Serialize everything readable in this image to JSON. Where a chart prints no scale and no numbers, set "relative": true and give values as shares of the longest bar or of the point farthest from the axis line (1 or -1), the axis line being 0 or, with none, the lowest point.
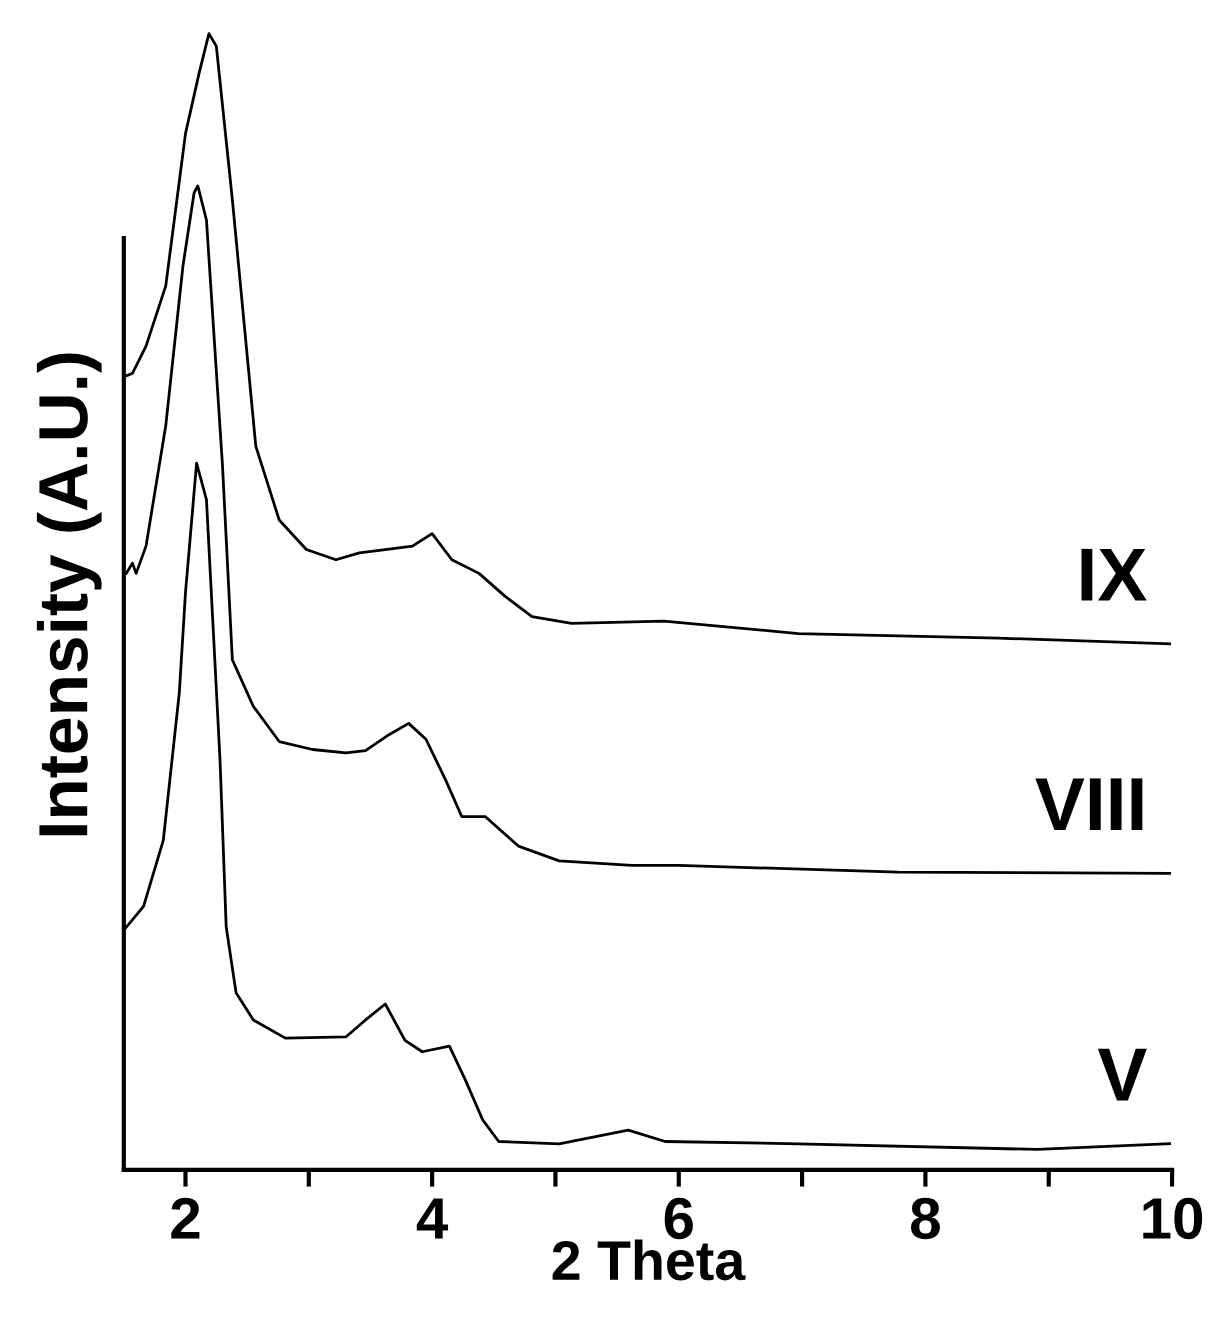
{
  "chart_data": {
    "type": "line",
    "xlabel": "2 Theta",
    "ylabel": "Intensity (A.U.)",
    "relative": true,
    "xlim": [
      1.5,
      10
    ],
    "xticks": [
      2,
      {
        "value": 3,
        "label": null
      },
      4,
      {
        "value": 5,
        "label": null
      },
      6,
      {
        "value": 7,
        "label": null
      },
      8,
      {
        "value": 9,
        "label": null
      },
      10
    ],
    "grid": false,
    "legend": false,
    "marker": "none",
    "line_style": "solid",
    "series": [
      {
        "name": "IX",
        "color": "#000000",
        "x": [
          1.5,
          1.57,
          1.68,
          1.84,
          2.0,
          2.11,
          2.19,
          2.25,
          2.38,
          2.57,
          2.76,
          2.98,
          3.22,
          3.41,
          3.62,
          3.84,
          4.0,
          4.16,
          4.38,
          4.59,
          4.81,
          5.13,
          5.88,
          6.97,
          8.59,
          9.98
        ],
        "values": [
          0.698,
          0.701,
          0.725,
          0.778,
          0.912,
          0.965,
          1.0,
          0.989,
          0.854,
          0.637,
          0.572,
          0.546,
          0.537,
          0.543,
          0.546,
          0.549,
          0.56,
          0.537,
          0.525,
          0.505,
          0.487,
          0.481,
          0.483,
          0.472,
          0.468,
          0.463
        ]
      },
      {
        "name": "VIII",
        "color": "#000000",
        "x": [
          1.52,
          1.57,
          1.6,
          1.68,
          1.84,
          1.98,
          2.07,
          2.1,
          2.17,
          2.3,
          2.38,
          2.55,
          2.76,
          3.03,
          3.3,
          3.46,
          3.65,
          3.81,
          3.95,
          4.11,
          4.24,
          4.43,
          4.7,
          5.03,
          5.62,
          6.0,
          7.78,
          9.98
        ],
        "values": [
          0.525,
          0.534,
          0.525,
          0.549,
          0.655,
          0.796,
          0.86,
          0.866,
          0.836,
          0.62,
          0.449,
          0.408,
          0.377,
          0.37,
          0.367,
          0.369,
          0.383,
          0.393,
          0.379,
          0.343,
          0.311,
          0.311,
          0.285,
          0.272,
          0.268,
          0.268,
          0.262,
          0.261
        ]
      },
      {
        "name": "V",
        "color": "#000000",
        "x": [
          1.5,
          1.66,
          1.82,
          1.95,
          2.0,
          2.09,
          2.17,
          2.28,
          2.33,
          2.41,
          2.55,
          2.81,
          3.3,
          3.46,
          3.62,
          3.78,
          3.92,
          4.14,
          4.27,
          4.41,
          4.54,
          5.03,
          5.59,
          5.89,
          6.97,
          8.91,
          9.98
        ],
        "values": [
          0.211,
          0.232,
          0.29,
          0.42,
          0.508,
          0.622,
          0.59,
          0.361,
          0.214,
          0.156,
          0.132,
          0.116,
          0.117,
          0.132,
          0.146,
          0.114,
          0.104,
          0.109,
          0.079,
          0.044,
          0.025,
          0.023,
          0.035,
          0.025,
          0.023,
          0.018,
          0.023
        ]
      }
    ]
  }
}
